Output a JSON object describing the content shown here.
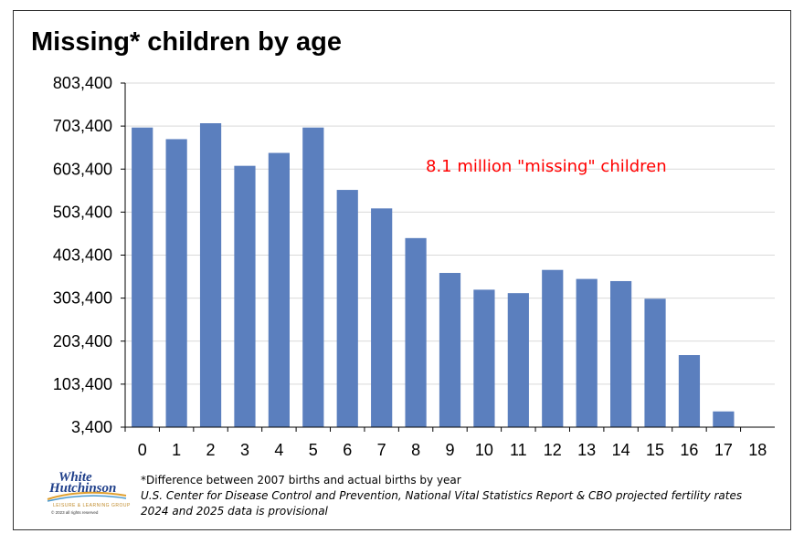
{
  "chart_data": {
    "type": "bar",
    "title": "Missing* children by age",
    "categories": [
      "0",
      "1",
      "2",
      "3",
      "4",
      "5",
      "6",
      "7",
      "8",
      "9",
      "10",
      "11",
      "12",
      "13",
      "14",
      "15",
      "16",
      "17",
      "18"
    ],
    "values": [
      700000,
      673000,
      710000,
      611000,
      641000,
      700000,
      555000,
      512000,
      443000,
      362000,
      323000,
      315000,
      369000,
      348000,
      343000,
      302000,
      171000,
      40000,
      3400
    ],
    "ylim": [
      3400,
      803400
    ],
    "yticks": [
      "803,400",
      "703,400",
      "603,400",
      "503,400",
      "403,400",
      "303,400",
      "203,400",
      "103,400",
      "3,400"
    ],
    "ytick_values": [
      803400,
      703400,
      603400,
      503400,
      403400,
      303400,
      203400,
      103400,
      3400
    ],
    "grid": true,
    "bar_color": "#5b7fbe",
    "annotation": "8.1 million \"missing\" children",
    "annotation_color": "#ff0000"
  },
  "footnotes": {
    "line1": "*Difference  between 2007 births and actual births by year",
    "line2": "U.S.  Center for Disease Control and Prevention, National Vital Statistics Report & CBO projected fertility rates",
    "line3": "2024 and 2025 data is provisional"
  },
  "logo": {
    "line1": "White",
    "line2": "Hutchinson",
    "subtitle": "LEISURE & LEARNING GROUP",
    "copyright": "© 2023 all rights reserved"
  }
}
